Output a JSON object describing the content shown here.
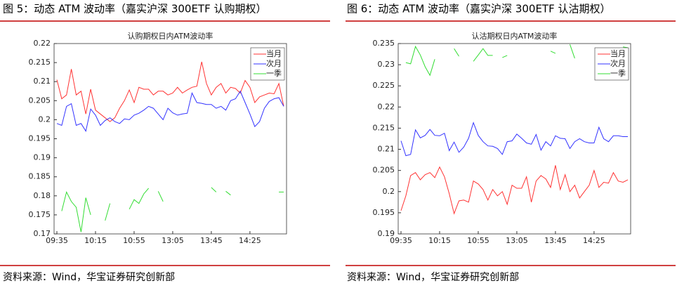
{
  "figures": [
    {
      "caption": "图 5：动态 ATM 波动率（嘉实沪深 300ETF 认购期权）",
      "source": "资料来源：Wind，华宝证券研究创新部"
    },
    {
      "caption": "图 6：动态 ATM 波动率（嘉实沪深 300ETF 认沽期权）",
      "source": "资料来源：Wind，华宝证券研究创新部"
    }
  ],
  "chart_data": [
    {
      "type": "line",
      "title": "认购期权日内ATM波动率",
      "categories": [
        "09:35",
        null,
        null,
        null,
        null,
        null,
        null,
        null,
        "10:15",
        null,
        null,
        null,
        null,
        null,
        null,
        null,
        "10:55",
        null,
        null,
        null,
        null,
        null,
        null,
        null,
        "13:05",
        null,
        null,
        null,
        null,
        null,
        null,
        null,
        "13:45",
        null,
        null,
        null,
        null,
        null,
        null,
        null,
        "14:25",
        null,
        null,
        null,
        null,
        null,
        null,
        null
      ],
      "ylim": [
        0.17,
        0.22
      ],
      "yticks": [
        0.17,
        0.175,
        0.18,
        0.185,
        0.19,
        0.195,
        0.2,
        0.205,
        0.21,
        0.215,
        0.22
      ],
      "legend": "upper-right",
      "series": [
        {
          "name": "当月",
          "color": "#ff3333",
          "values": [
            0.2105,
            0.2055,
            0.2065,
            0.2133,
            0.2065,
            0.2075,
            0.2015,
            0.208,
            0.2025,
            0.2015,
            0.2005,
            0.1995,
            0.2005,
            0.203,
            0.205,
            0.2078,
            0.2045,
            0.2085,
            0.208,
            0.208,
            0.2065,
            0.2075,
            0.2075,
            0.2065,
            0.207,
            0.2085,
            0.207,
            0.2078,
            0.2085,
            0.2088,
            0.2152,
            0.2095,
            0.2065,
            0.2085,
            0.2095,
            0.207,
            0.2085,
            0.2082,
            0.207,
            0.2103,
            0.2085,
            0.2045,
            0.206,
            0.2065,
            0.207,
            0.2068,
            0.2095,
            0.2035
          ]
        },
        {
          "name": "次月",
          "color": "#3333ff",
          "values": [
            0.199,
            0.1985,
            0.2035,
            0.2042,
            0.1985,
            0.199,
            0.197,
            0.2028,
            0.2012,
            0.1985,
            0.1998,
            0.2005,
            0.1995,
            0.199,
            0.2002,
            0.2,
            0.2012,
            0.2017,
            0.2025,
            0.2035,
            0.203,
            0.2015,
            0.2,
            0.203,
            0.2018,
            0.2012,
            0.2015,
            0.2017,
            0.207,
            0.2045,
            0.2043,
            0.204,
            0.204,
            0.203,
            0.2035,
            0.2025,
            0.205,
            0.2055,
            0.2075,
            0.2045,
            0.2015,
            0.1982,
            0.1995,
            0.203,
            0.2048,
            0.2055,
            0.2058,
            0.2035
          ]
        },
        {
          "name": "一季",
          "color": "#33dd33",
          "values": [
            null,
            0.176,
            0.181,
            0.1785,
            0.177,
            0.1705,
            0.1795,
            0.175,
            null,
            null,
            0.1735,
            0.178,
            null,
            null,
            null,
            0.1765,
            0.179,
            0.178,
            0.1805,
            0.182,
            null,
            0.1812,
            0.1785,
            null,
            null,
            null,
            null,
            null,
            null,
            null,
            null,
            null,
            0.1822,
            0.181,
            null,
            0.1812,
            0.1802,
            null,
            null,
            null,
            null,
            null,
            null,
            null,
            null,
            null,
            0.181,
            0.181
          ]
        }
      ]
    },
    {
      "type": "line",
      "title": "认沽期权日内ATM波动率",
      "categories": [
        "09:35",
        null,
        null,
        null,
        null,
        null,
        null,
        null,
        "10:15",
        null,
        null,
        null,
        null,
        null,
        null,
        null,
        "10:55",
        null,
        null,
        null,
        null,
        null,
        null,
        null,
        "13:05",
        null,
        null,
        null,
        null,
        null,
        null,
        null,
        "13:45",
        null,
        null,
        null,
        null,
        null,
        null,
        null,
        "14:25",
        null,
        null,
        null,
        null,
        null,
        null,
        null
      ],
      "ylim": [
        0.19,
        0.235
      ],
      "yticks": [
        0.19,
        0.195,
        0.2,
        0.205,
        0.21,
        0.215,
        0.22,
        0.225,
        0.23,
        0.235
      ],
      "legend": "upper-right",
      "series": [
        {
          "name": "当月",
          "color": "#ff3333",
          "values": [
            0.1955,
            0.199,
            0.2038,
            0.2045,
            0.2028,
            0.204,
            0.2045,
            0.2033,
            0.2058,
            0.2035,
            0.1995,
            0.1948,
            0.1978,
            0.198,
            0.1975,
            0.2025,
            0.2018,
            0.2005,
            0.198,
            0.2005,
            0.199,
            0.2,
            0.197,
            0.2015,
            0.2008,
            0.2008,
            0.2035,
            0.1975,
            0.2025,
            0.2038,
            0.203,
            0.201,
            0.2062,
            0.2005,
            0.204,
            0.2,
            0.2015,
            0.1985,
            0.2,
            0.2015,
            0.205,
            0.201,
            0.2022,
            0.202,
            0.2045,
            0.2025,
            0.2022,
            0.2028
          ]
        },
        {
          "name": "次月",
          "color": "#3333ff",
          "values": [
            0.212,
            0.2085,
            0.2088,
            0.2146,
            0.2127,
            0.2133,
            0.2147,
            0.2133,
            0.2132,
            0.2138,
            0.2097,
            0.2117,
            0.2093,
            0.2105,
            0.2126,
            0.2163,
            0.2133,
            0.2118,
            0.2108,
            0.2107,
            0.2102,
            0.2088,
            0.2118,
            0.212,
            0.2136,
            0.2126,
            0.2115,
            0.2112,
            0.2135,
            0.2098,
            0.2118,
            0.2108,
            0.2132,
            0.2126,
            0.2125,
            0.2102,
            0.2118,
            0.2125,
            0.2118,
            0.2115,
            0.2115,
            0.2152,
            0.2125,
            0.2118,
            0.2132,
            0.2132,
            0.213,
            0.213
          ]
        },
        {
          "name": "一季",
          "color": "#33dd33",
          "values": [
            null,
            0.2305,
            0.2302,
            0.2343,
            0.2323,
            0.2295,
            0.2275,
            0.2313,
            null,
            null,
            null,
            0.2338,
            0.232,
            null,
            null,
            0.2308,
            0.2323,
            0.2338,
            0.2322,
            0.2322,
            null,
            0.2317,
            0.2322,
            null,
            null,
            null,
            null,
            null,
            null,
            null,
            null,
            0.2332,
            0.2327,
            null,
            null,
            0.2348,
            0.2315,
            null,
            null,
            null,
            null,
            null,
            null,
            null,
            null,
            null,
            0.2342,
            0.234
          ]
        }
      ]
    }
  ]
}
